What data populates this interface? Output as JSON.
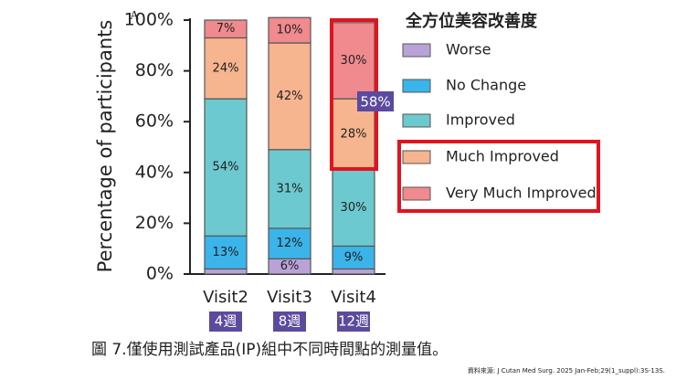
{
  "chart_data": {
    "type": "stacked-bar",
    "panel_label": "A",
    "ylabel": "Percentage of participants",
    "legend_title": "全方位美容改善度",
    "categories": [
      "Visit2",
      "Visit3",
      "Visit4"
    ],
    "sublabels": [
      "4週",
      "8週",
      "12週"
    ],
    "annotation": "58%",
    "series": [
      {
        "name": "Worse",
        "color": "#b9a3d6",
        "values": [
          2,
          6,
          2
        ],
        "value_labels": [
          null,
          "6%",
          null
        ]
      },
      {
        "name": "No Change",
        "color": "#3bb4ea",
        "values": [
          13,
          12,
          9
        ],
        "value_labels": [
          "13%",
          "12%",
          "9%"
        ]
      },
      {
        "name": "Improved",
        "color": "#6cc9cf",
        "values": [
          54,
          31,
          30
        ],
        "value_labels": [
          "54%",
          "31%",
          "30%"
        ]
      },
      {
        "name": "Much Improved",
        "color": "#f6b48f",
        "values": [
          24,
          42,
          28
        ],
        "value_labels": [
          "24%",
          "42%",
          "28%"
        ]
      },
      {
        "name": "Very Much Improved",
        "color": "#f08a8f",
        "values": [
          7,
          10,
          30
        ],
        "value_labels": [
          "7%",
          "10%",
          "30%"
        ]
      }
    ],
    "ylim": [
      0,
      100
    ],
    "yticks": [
      {
        "value": 0,
        "label": "0%"
      },
      {
        "value": 20,
        "label": "20%"
      },
      {
        "value": 40,
        "label": "40%"
      },
      {
        "value": 60,
        "label": "60%"
      },
      {
        "value": 80,
        "label": "80%"
      },
      {
        "value": 100,
        "label": "100%"
      }
    ],
    "grid": false
  },
  "caption": "圖 7.僅使用測試產品(IP)組中不同時間點的測量值。",
  "source": "資料來源: J Cutan Med Surg. 2025 Jan-Feb;29(1_suppl):3S-13S."
}
